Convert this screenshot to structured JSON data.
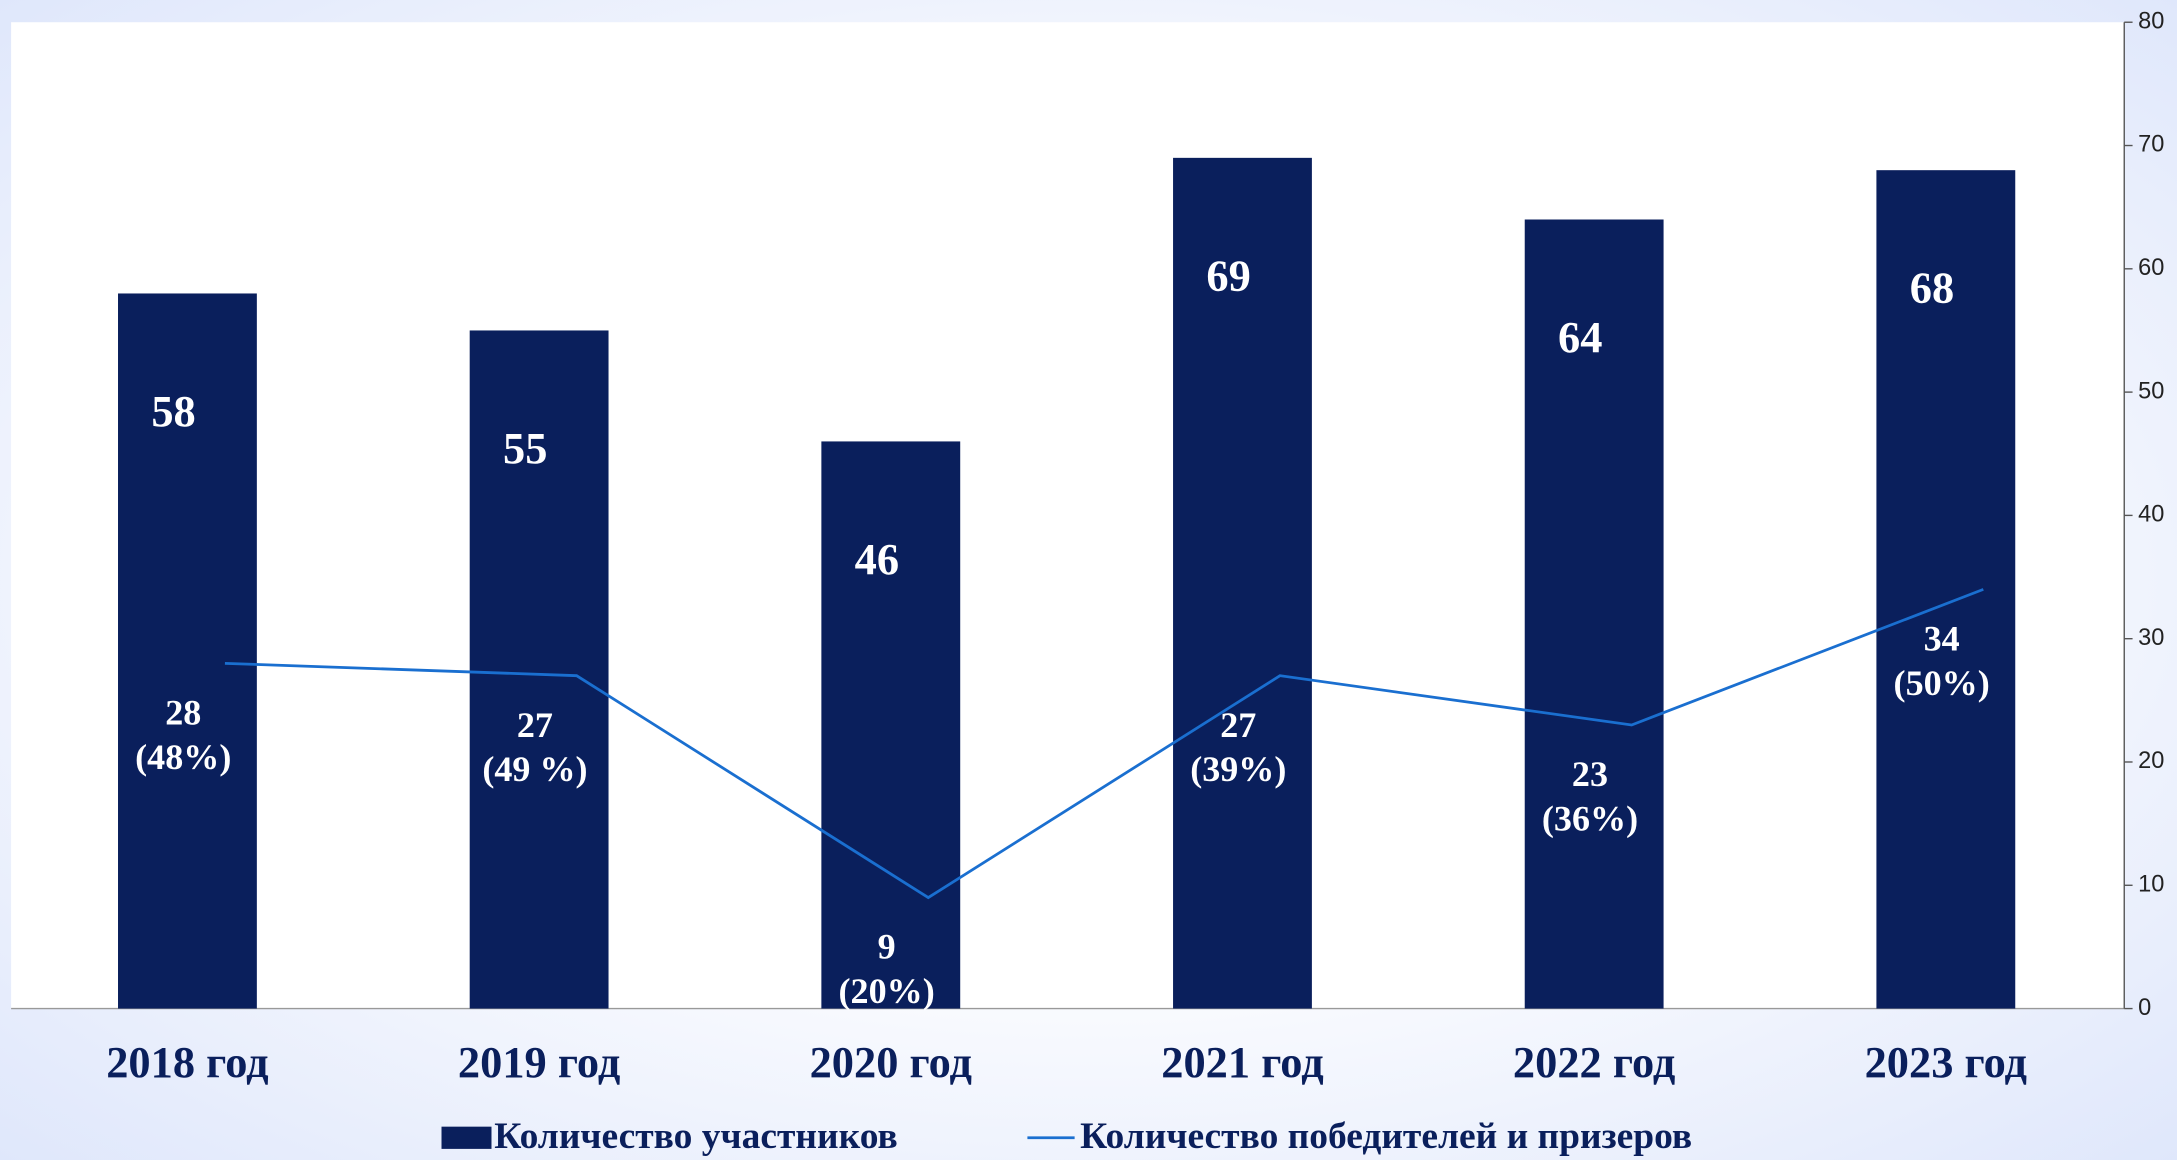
{
  "chart_data": {
    "type": "bar",
    "categories": [
      "2018 год",
      "2019 год",
      "2020 год",
      "2021 год",
      "2022 год",
      "2023 год"
    ],
    "series": [
      {
        "name": "Количество участников",
        "type": "bar",
        "color": "#0a1f5c",
        "values": [
          58,
          55,
          46,
          69,
          64,
          68
        ]
      },
      {
        "name": "Количество победителей и призеров",
        "type": "line",
        "color": "#1a6fd0",
        "values": [
          28,
          27,
          9,
          27,
          23,
          34
        ],
        "value_labels": [
          [
            "28",
            "(48%)"
          ],
          [
            "27",
            "(49 %)"
          ],
          [
            "9",
            "(20%)"
          ],
          [
            "27",
            "(39%)"
          ],
          [
            "23",
            "(36%)"
          ],
          [
            "34",
            "(50%)"
          ]
        ]
      }
    ],
    "ylim": [
      0,
      80
    ],
    "yticks": [
      0,
      10,
      20,
      30,
      40,
      50,
      60,
      70,
      80
    ],
    "y_axis_side": "right",
    "grid": false
  }
}
